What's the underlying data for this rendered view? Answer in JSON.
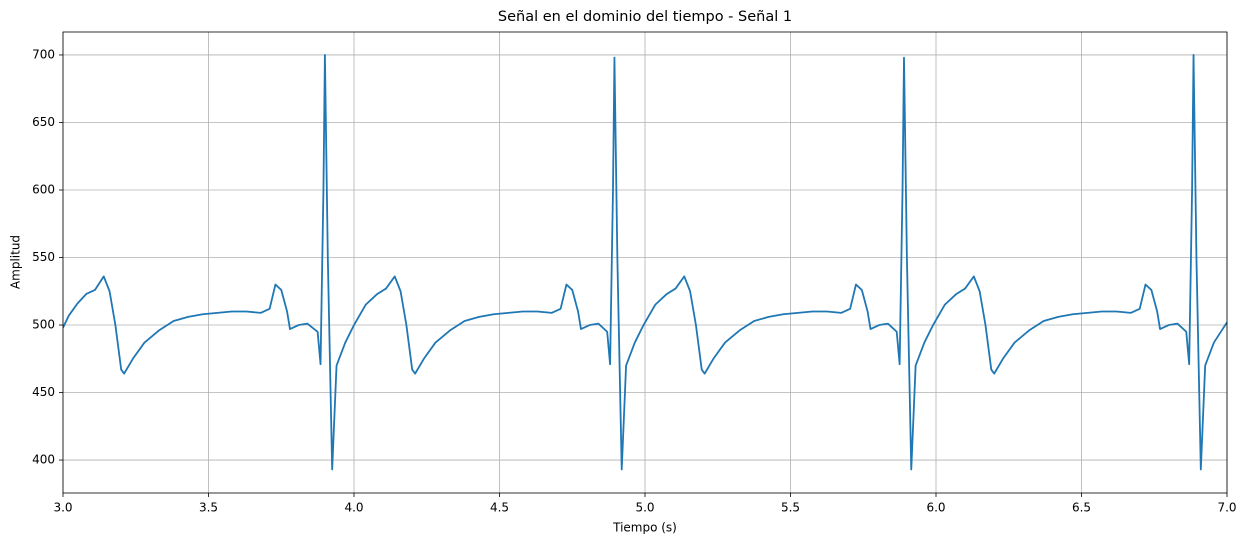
{
  "chart_data": {
    "type": "line",
    "title": "Señal en el dominio del tiempo - Señal 1",
    "xlabel": "Tiempo (s)",
    "ylabel": "Amplitud",
    "x": [
      3.0,
      3.02,
      3.05,
      3.08,
      3.11,
      3.14,
      3.16,
      3.18,
      3.2,
      3.21,
      3.24,
      3.28,
      3.33,
      3.38,
      3.43,
      3.48,
      3.53,
      3.58,
      3.63,
      3.68,
      3.71,
      3.73,
      3.75,
      3.77,
      3.78,
      3.81,
      3.84,
      3.875,
      3.885,
      3.895,
      3.9,
      3.91,
      3.925,
      3.94,
      3.97,
      4.0,
      4.04,
      4.08,
      4.11,
      4.14,
      4.16,
      4.18,
      4.2,
      4.21,
      4.24,
      4.28,
      4.33,
      4.38,
      4.43,
      4.48,
      4.53,
      4.58,
      4.63,
      4.68,
      4.71,
      4.73,
      4.75,
      4.77,
      4.78,
      4.81,
      4.84,
      4.87,
      4.88,
      4.89,
      4.895,
      4.905,
      4.92,
      4.935,
      4.965,
      4.995,
      5.035,
      5.075,
      5.105,
      5.135,
      5.155,
      5.175,
      5.195,
      5.205,
      5.235,
      5.275,
      5.325,
      5.375,
      5.425,
      5.475,
      5.525,
      5.575,
      5.625,
      5.675,
      5.705,
      5.725,
      5.745,
      5.765,
      5.775,
      5.805,
      5.835,
      5.865,
      5.875,
      5.885,
      5.89,
      5.9,
      5.915,
      5.93,
      5.96,
      5.99,
      6.03,
      6.07,
      6.1,
      6.13,
      6.15,
      6.17,
      6.19,
      6.2,
      6.23,
      6.27,
      6.32,
      6.37,
      6.42,
      6.47,
      6.52,
      6.57,
      6.62,
      6.67,
      6.7,
      6.72,
      6.74,
      6.76,
      6.77,
      6.8,
      6.83,
      6.86,
      6.87,
      6.88,
      6.885,
      6.895,
      6.91,
      6.925,
      6.955,
      6.985,
      7.0
    ],
    "series": [
      {
        "name": "Señal 1",
        "color": "#1f77b4",
        "values": [
          498,
          507,
          516,
          523,
          526,
          536,
          525,
          500,
          467,
          464,
          475,
          487,
          496,
          503,
          506,
          508,
          509,
          510,
          510,
          509,
          512,
          530,
          526,
          510,
          497,
          500,
          501,
          495,
          471,
          600,
          700,
          550,
          393,
          470,
          487,
          500,
          515,
          523,
          527,
          536,
          525,
          500,
          467,
          464,
          475,
          487,
          496,
          503,
          506,
          508,
          509,
          510,
          510,
          509,
          512,
          530,
          526,
          510,
          497,
          500,
          501,
          495,
          471,
          600,
          698,
          550,
          393,
          470,
          487,
          500,
          515,
          523,
          527,
          536,
          525,
          500,
          467,
          464,
          475,
          487,
          496,
          503,
          506,
          508,
          509,
          510,
          510,
          509,
          512,
          530,
          526,
          510,
          497,
          500,
          501,
          495,
          471,
          600,
          698,
          550,
          393,
          470,
          487,
          500,
          515,
          523,
          527,
          536,
          525,
          500,
          467,
          464,
          475,
          487,
          496,
          503,
          506,
          508,
          509,
          510,
          510,
          509,
          512,
          530,
          526,
          510,
          497,
          500,
          501,
          495,
          471,
          600,
          700,
          550,
          393,
          470,
          487,
          497,
          502
        ]
      }
    ],
    "xlim": [
      3,
      7
    ],
    "ylim": [
      375.6,
      717
    ],
    "xticks": [
      {
        "value": 3,
        "label": "3.0"
      },
      3.5,
      {
        "value": 4,
        "label": "4.0"
      },
      4.5,
      {
        "value": 5,
        "label": "5.0"
      },
      5.5,
      {
        "value": 6,
        "label": "6.0"
      },
      6.5,
      {
        "value": 7,
        "label": "7.0"
      }
    ],
    "yticks": [
      400,
      450,
      500,
      550,
      600,
      650,
      700
    ],
    "grid": true
  }
}
